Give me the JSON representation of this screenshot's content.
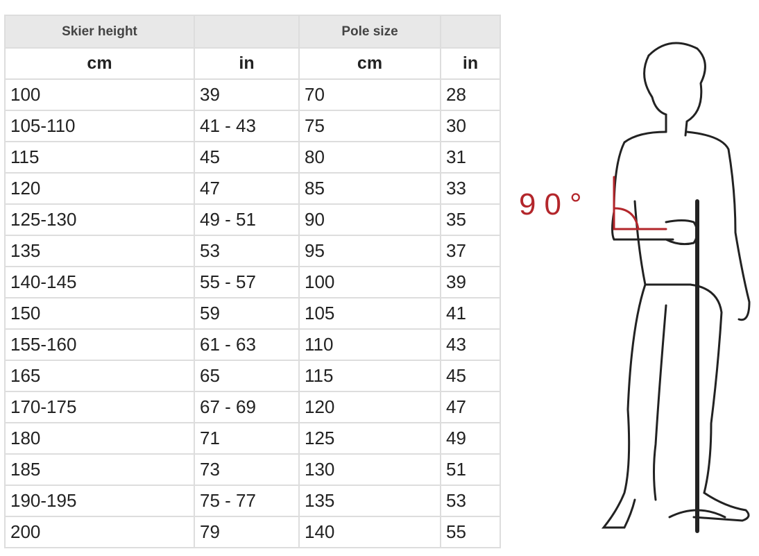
{
  "table": {
    "group_headers": [
      "Skier height",
      "",
      "Pole size",
      ""
    ],
    "unit_headers": [
      "cm",
      "in",
      "cm",
      "in"
    ],
    "rows": [
      [
        "100",
        "39",
        "70",
        "28"
      ],
      [
        "105-110",
        "41 - 43",
        "75",
        "30"
      ],
      [
        "115",
        "45",
        "80",
        "31"
      ],
      [
        "120",
        "47",
        "85",
        "33"
      ],
      [
        "125-130",
        "49 - 51",
        "90",
        "35"
      ],
      [
        "135",
        "53",
        "95",
        "37"
      ],
      [
        "140-145",
        "55 - 57",
        "100",
        "39"
      ],
      [
        "150",
        "59",
        "105",
        "41"
      ],
      [
        "155-160",
        "61 - 63",
        "110",
        "43"
      ],
      [
        "165",
        "65",
        "115",
        "45"
      ],
      [
        "170-175",
        "67 - 69",
        "120",
        "47"
      ],
      [
        "180",
        "71",
        "125",
        "49"
      ],
      [
        "185",
        "73",
        "130",
        "51"
      ],
      [
        "190-195",
        "75 - 77",
        "135",
        "53"
      ],
      [
        "200",
        "79",
        "140",
        "55"
      ]
    ]
  },
  "illustration": {
    "angle_label": "90°",
    "accent_color": "#b3262b"
  }
}
